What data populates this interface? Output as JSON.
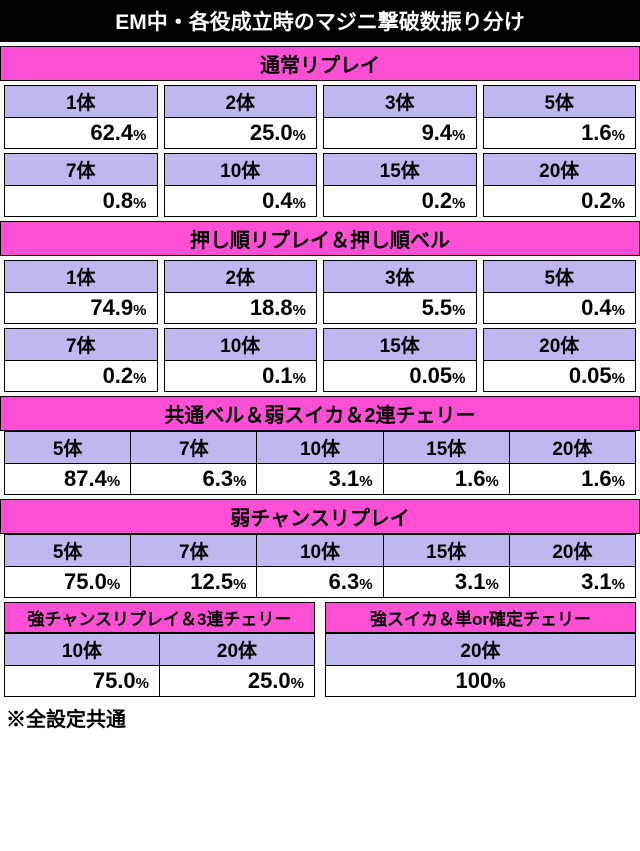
{
  "title": "EM中・各役成立時のマジニ撃破数振り分け",
  "colors": {
    "title_bg": "#000000",
    "title_fg": "#ffffff",
    "section_bg": "#ff4fd4",
    "label_bg": "#bdb9ef",
    "border": "#000000"
  },
  "sections4": [
    {
      "header": "通常リプレイ",
      "rows": [
        {
          "labels": [
            "1体",
            "2体",
            "3体",
            "5体"
          ],
          "values": [
            [
              "62.4",
              "%"
            ],
            [
              "25.0",
              "%"
            ],
            [
              "9.4",
              "%"
            ],
            [
              "1.6",
              "%"
            ]
          ]
        },
        {
          "labels": [
            "7体",
            "10体",
            "15体",
            "20体"
          ],
          "values": [
            [
              "0.8",
              "%"
            ],
            [
              "0.4",
              "%"
            ],
            [
              "0.2",
              "%"
            ],
            [
              "0.2",
              "%"
            ]
          ]
        }
      ]
    },
    {
      "header": "押し順リプレイ＆押し順ベル",
      "rows": [
        {
          "labels": [
            "1体",
            "2体",
            "3体",
            "5体"
          ],
          "values": [
            [
              "74.9",
              "%"
            ],
            [
              "18.8",
              "%"
            ],
            [
              "5.5",
              "%"
            ],
            [
              "0.4",
              "%"
            ]
          ]
        },
        {
          "labels": [
            "7体",
            "10体",
            "15体",
            "20体"
          ],
          "values": [
            [
              "0.2",
              "%"
            ],
            [
              "0.1",
              "%"
            ],
            [
              "0.05",
              "%"
            ],
            [
              "0.05",
              "%"
            ]
          ]
        }
      ]
    }
  ],
  "sections5": [
    {
      "header": "共通ベル＆弱スイカ＆2連チェリー",
      "labels": [
        "5体",
        "7体",
        "10体",
        "15体",
        "20体"
      ],
      "values": [
        [
          "87.4",
          "%"
        ],
        [
          "6.3",
          "%"
        ],
        [
          "3.1",
          "%"
        ],
        [
          "1.6",
          "%"
        ],
        [
          "1.6",
          "%"
        ]
      ]
    },
    {
      "header": "弱チャンスリプレイ",
      "labels": [
        "5体",
        "7体",
        "10体",
        "15体",
        "20体"
      ],
      "values": [
        [
          "75.0",
          "%"
        ],
        [
          "12.5",
          "%"
        ],
        [
          "6.3",
          "%"
        ],
        [
          "3.1",
          "%"
        ],
        [
          "3.1",
          "%"
        ]
      ]
    }
  ],
  "bottom": {
    "left": {
      "header": "強チャンスリプレイ＆3連チェリー",
      "labels": [
        "10体",
        "20体"
      ],
      "values": [
        [
          "75.0",
          "%"
        ],
        [
          "25.0",
          "%"
        ]
      ]
    },
    "right": {
      "header": "強スイカ＆単or確定チェリー",
      "labels": [
        "20体"
      ],
      "values": [
        [
          "100",
          "%"
        ]
      ]
    }
  },
  "footnote": "※全設定共通"
}
